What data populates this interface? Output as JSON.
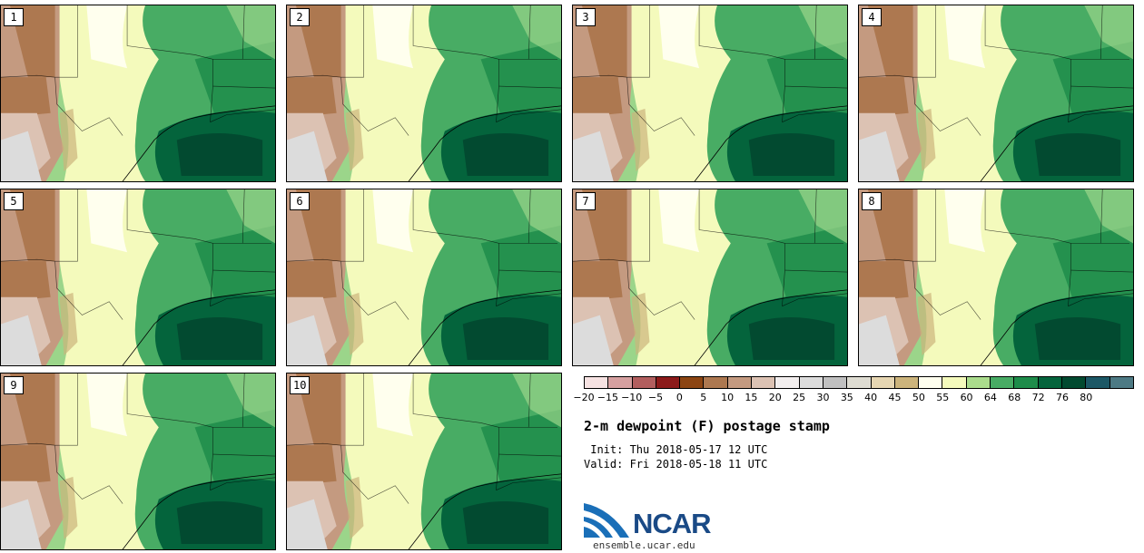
{
  "panels": [
    {
      "label": "1"
    },
    {
      "label": "2"
    },
    {
      "label": "3"
    },
    {
      "label": "4"
    },
    {
      "label": "5"
    },
    {
      "label": "6"
    },
    {
      "label": "7"
    },
    {
      "label": "8"
    },
    {
      "label": "9"
    },
    {
      "label": "10"
    }
  ],
  "colorbar": {
    "colors": [
      "#f6e2e2",
      "#d6a0a0",
      "#b25e5e",
      "#8c1a1a",
      "#8c4513",
      "#ad7850",
      "#c49a80",
      "#dcc2b3",
      "#f2eeee",
      "#dcdcdc",
      "#c0c0c0",
      "#dedcd2",
      "#e6d6b2",
      "#ccb47c",
      "#ffffee",
      "#f4fabc",
      "#aadc8c",
      "#48ac64",
      "#1e8c4a",
      "#04643c",
      "#024a30",
      "#1c5866",
      "#4d7a84"
    ],
    "ticks": [
      "−20",
      "−15",
      "−10",
      "−5",
      "0",
      "5",
      "10",
      "15",
      "20",
      "25",
      "30",
      "35",
      "40",
      "45",
      "50",
      "55",
      "60",
      "64",
      "68",
      "72",
      "76",
      "80"
    ]
  },
  "title": "2-m dewpoint (F) postage stamp",
  "init_line": " Init: Thu 2018-05-17 12 UTC",
  "valid_line": "Valid: Fri 2018-05-18 11 UTC",
  "logo_text": "NCAR",
  "url": "ensemble.ucar.edu"
}
